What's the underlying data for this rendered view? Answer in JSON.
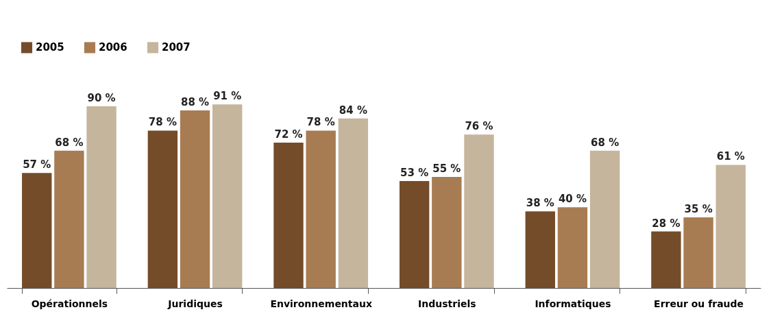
{
  "chart_data": {
    "type": "bar",
    "categories": [
      "Opérationnels",
      "Juridiques",
      "Environnementaux",
      "Industriels",
      "Informatiques",
      "Erreur ou fraude"
    ],
    "series": [
      {
        "name": "2005",
        "color": "#754c29",
        "values": [
          57,
          78,
          72,
          53,
          38,
          28
        ],
        "value_labels": [
          "57 %",
          "78 %",
          "72 %",
          "53 %",
          "38 %",
          "28 %"
        ]
      },
      {
        "name": "2006",
        "color": "#a87c52",
        "values": [
          68,
          88,
          78,
          55,
          40,
          35
        ],
        "value_labels": [
          "68 %",
          "88 %",
          "78 %",
          "55 %",
          "40 %",
          "35 %"
        ]
      },
      {
        "name": "2007",
        "color": "#c4b59c",
        "values": [
          90,
          91,
          84,
          76,
          68,
          61
        ],
        "value_labels": [
          "90 %",
          "91 %",
          "84 %",
          "76 %",
          "68 %",
          "61 %"
        ]
      }
    ],
    "legend": "top left",
    "grid": false
  }
}
